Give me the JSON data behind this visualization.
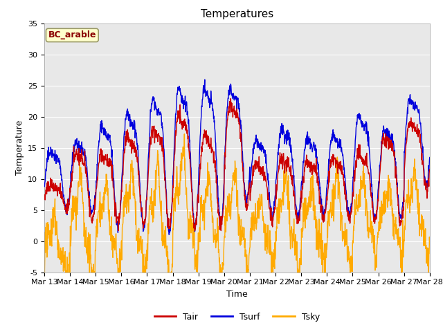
{
  "title": "Temperatures",
  "xlabel": "Time",
  "ylabel": "Temperature",
  "ylim": [
    -5,
    35
  ],
  "annotation": "BC_arable",
  "legend": [
    "Tair",
    "Tsurf",
    "Tsky"
  ],
  "colors": {
    "Tair": "#cc0000",
    "Tsurf": "#0000dd",
    "Tsky": "#ffaa00"
  },
  "background_color": "#e8e8e8",
  "fig_color": "#ffffff",
  "x_ticks": [
    "Mar 13",
    "Mar 14",
    "Mar 15",
    "Mar 16",
    "Mar 17",
    "Mar 18",
    "Mar 19",
    "Mar 20",
    "Mar 21",
    "Mar 22",
    "Mar 23",
    "Mar 24",
    "Mar 25",
    "Mar 26",
    "Mar 27",
    "Mar 28"
  ],
  "yticks": [
    -5,
    0,
    5,
    10,
    15,
    20,
    25,
    30,
    35
  ],
  "linewidth": 1.0,
  "title_fontsize": 11,
  "label_fontsize": 9,
  "tick_fontsize": 8
}
